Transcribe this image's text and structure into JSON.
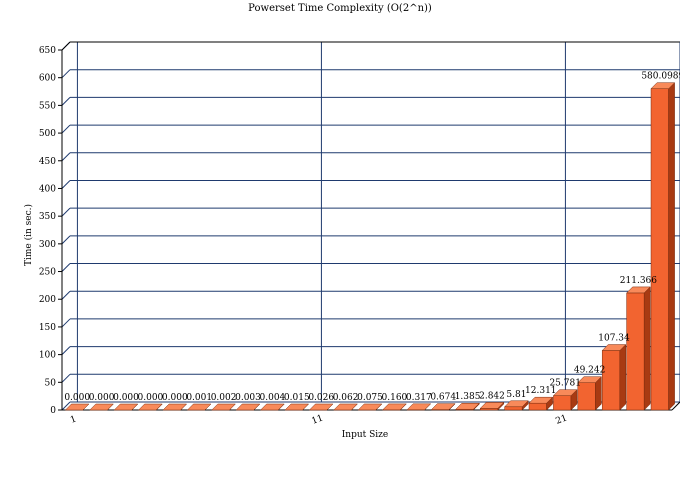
{
  "chart_data": {
    "type": "bar",
    "title": "Powerset Time Complexity (O(2^n))",
    "xlabel": "Input Size",
    "ylabel": "Time (in sec.)",
    "ylim": [
      0,
      650
    ],
    "y_ticks": [
      "0",
      "50",
      "100",
      "150",
      "200",
      "250",
      "300",
      "350",
      "400",
      "450",
      "500",
      "550",
      "600",
      "650"
    ],
    "x_tick_labels": {
      "1": "1",
      "11": "11",
      "21": "21"
    },
    "categories": [
      1,
      2,
      3,
      4,
      5,
      6,
      7,
      8,
      9,
      10,
      11,
      12,
      13,
      14,
      15,
      16,
      17,
      18,
      19,
      20,
      21,
      22,
      23,
      24,
      25
    ],
    "values": [
      0.0,
      0.0,
      0.0,
      0.0,
      0.0,
      0.001,
      0.002,
      0.003,
      0.004,
      0.015,
      0.026,
      0.062,
      0.075,
      0.16,
      0.317,
      0.674,
      1.385,
      2.842,
      5.81,
      12.311,
      25.781,
      49.242,
      107.34,
      211.366,
      580.0989
    ],
    "data_labels": [
      "0.000",
      "0.000",
      "0.000",
      "0.000",
      "0.000",
      "0.001",
      "0.002",
      "0.003",
      "0.004",
      "0.015",
      "0.026",
      "0.062",
      "0.075",
      "0.160",
      "0.317",
      "0.674",
      "1.385",
      "2.842",
      "5.81",
      "12.311",
      "25.781",
      "49.242",
      "107.34",
      "211.366",
      "580.0989"
    ],
    "grid": true,
    "bar_color": "#f26430",
    "bar_side_color": "#a83a12",
    "bar_top_color": "#f88a5a",
    "grid_color": "#1f3a6e"
  }
}
